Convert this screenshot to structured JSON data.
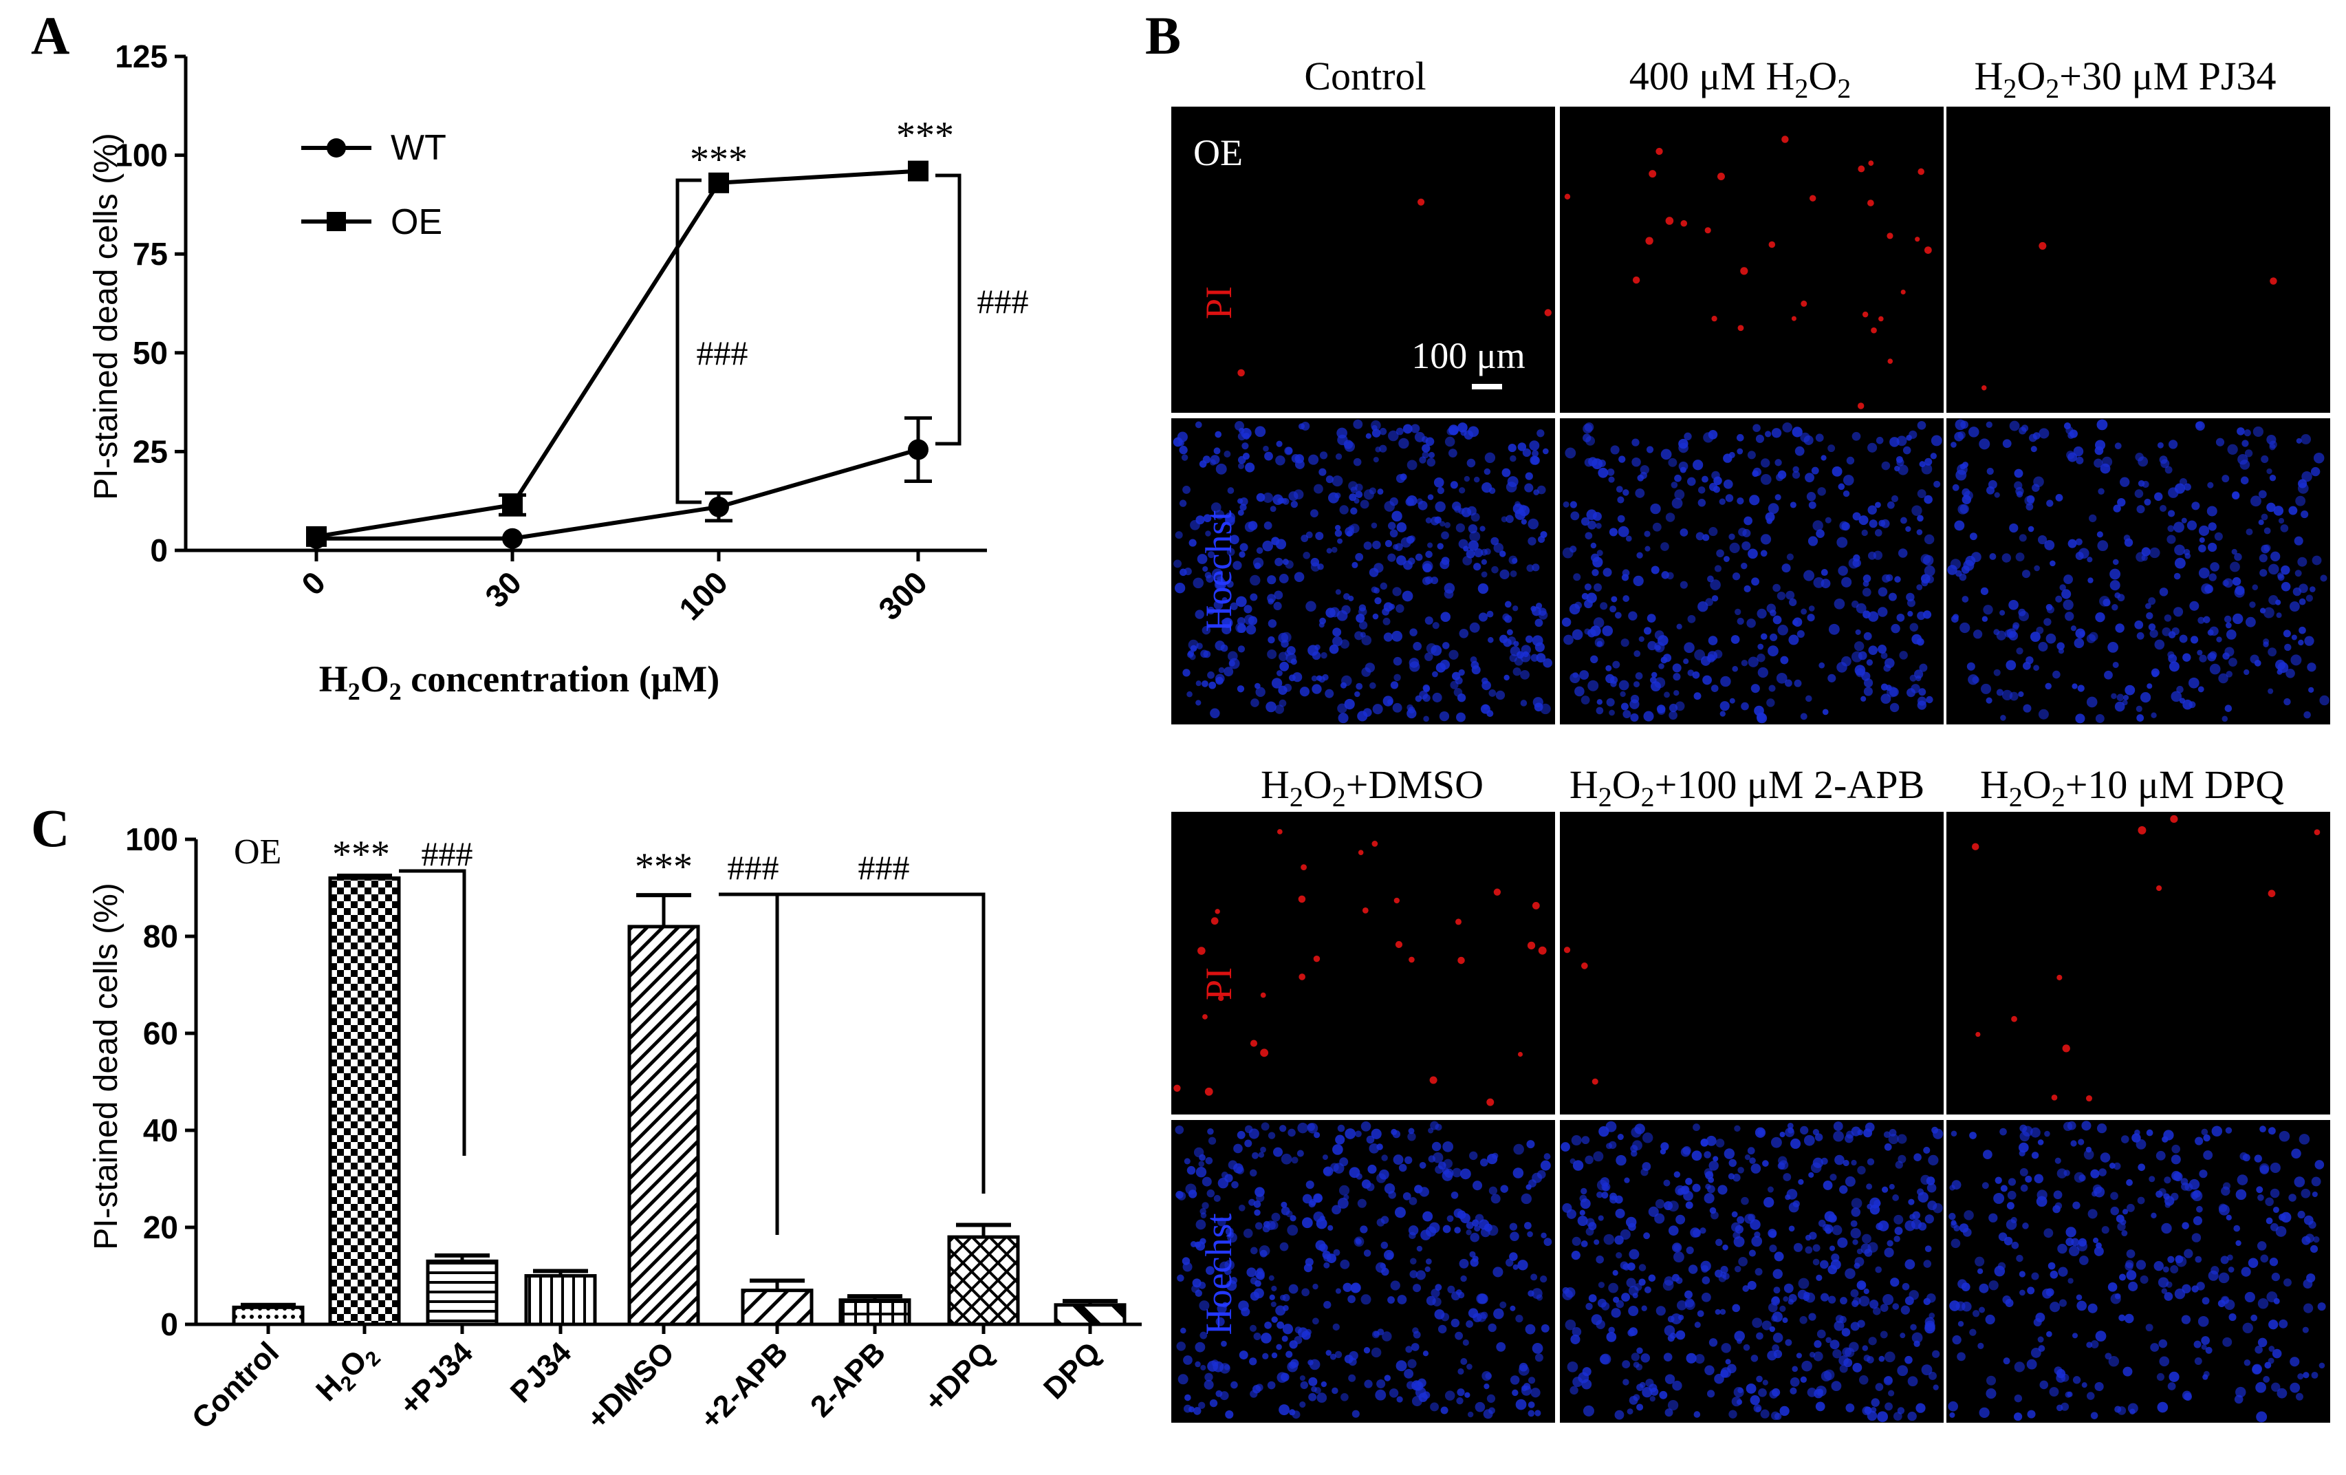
{
  "panels": {
    "a": "A",
    "b": "B",
    "c": "C"
  },
  "chart_data": [
    {
      "type": "line",
      "panel": "A",
      "ylabel": "PI-stained dead cells (%)",
      "xlabel_main": "H",
      "xlabel_sub1": "2",
      "xlabel_mid": "O",
      "xlabel_sub2": "2",
      "xlabel_rest": " concentration (μM)",
      "categories": [
        "0",
        "30",
        "100",
        "300"
      ],
      "yticks": [
        "0",
        "25",
        "50",
        "75",
        "100",
        "125"
      ],
      "ylim": [
        0,
        125
      ],
      "series": [
        {
          "name": "WT",
          "values": [
            3,
            3,
            11,
            25.5
          ],
          "errors": [
            0.8,
            0.8,
            3.5,
            8
          ]
        },
        {
          "name": "OE",
          "values": [
            3.5,
            11.5,
            93,
            96
          ],
          "errors": [
            0.8,
            2.5,
            1,
            1
          ]
        }
      ],
      "annotations": {
        "stars100": "***",
        "stars300": "***",
        "hash100": "###",
        "hash300": "###"
      }
    },
    {
      "type": "bar",
      "panel": "C",
      "ylabel": "PI-stained dead cells (%)",
      "label_oe": "OE",
      "categories": [
        "Control",
        "H2O2",
        "+PJ34",
        "PJ34",
        "+DMSO",
        "+2-APB",
        "2-APB",
        "+DPQ",
        "DPQ"
      ],
      "category_h2o2": {
        "main": "H",
        "sub": "2",
        "mid": "O",
        "sub2": "2"
      },
      "values": [
        3.5,
        92,
        13,
        10,
        82,
        7,
        5,
        18,
        4
      ],
      "errors": [
        0.5,
        0.5,
        1.2,
        1,
        6.5,
        2,
        0.8,
        2.5,
        0.8
      ],
      "yticks": [
        "0",
        "20",
        "40",
        "60",
        "80",
        "100"
      ],
      "ylim": [
        0,
        100
      ],
      "annotations": {
        "stars_h2o2": "***",
        "hash_pj34": "###",
        "stars_dmso": "***",
        "hash_2apb": "###",
        "hash_dpq": "###"
      }
    }
  ],
  "micrographs": {
    "scale_bar": "100 μm",
    "row_label_oe": "OE",
    "row_label_pi": "PI",
    "row_label_hoechst": "Hoechst",
    "top_headers": {
      "control": "Control",
      "h2o2": {
        "pre": "400 μM H",
        "s1": "2",
        "mid": "O",
        "s2": "2"
      },
      "pj34": {
        "pre": "H",
        "s1": "2",
        "mid": "O",
        "s2": "2",
        "post": "+30 μM PJ34"
      }
    },
    "bottom_headers": {
      "dmso": {
        "pre": "H",
        "s1": "2",
        "mid": "O",
        "s2": "2",
        "post": "+DMSO"
      },
      "apb": {
        "pre": "H",
        "s1": "2",
        "mid": "O",
        "s2": "2",
        "post": "+100 μM 2-APB"
      },
      "dpq": {
        "pre": "H",
        "s1": "2",
        "mid": "O",
        "s2": "2",
        "post": "+10 μM DPQ"
      }
    },
    "colors": {
      "pi": "#cc1111",
      "hoechst": "#1a2fd6",
      "background": "#000000"
    }
  }
}
